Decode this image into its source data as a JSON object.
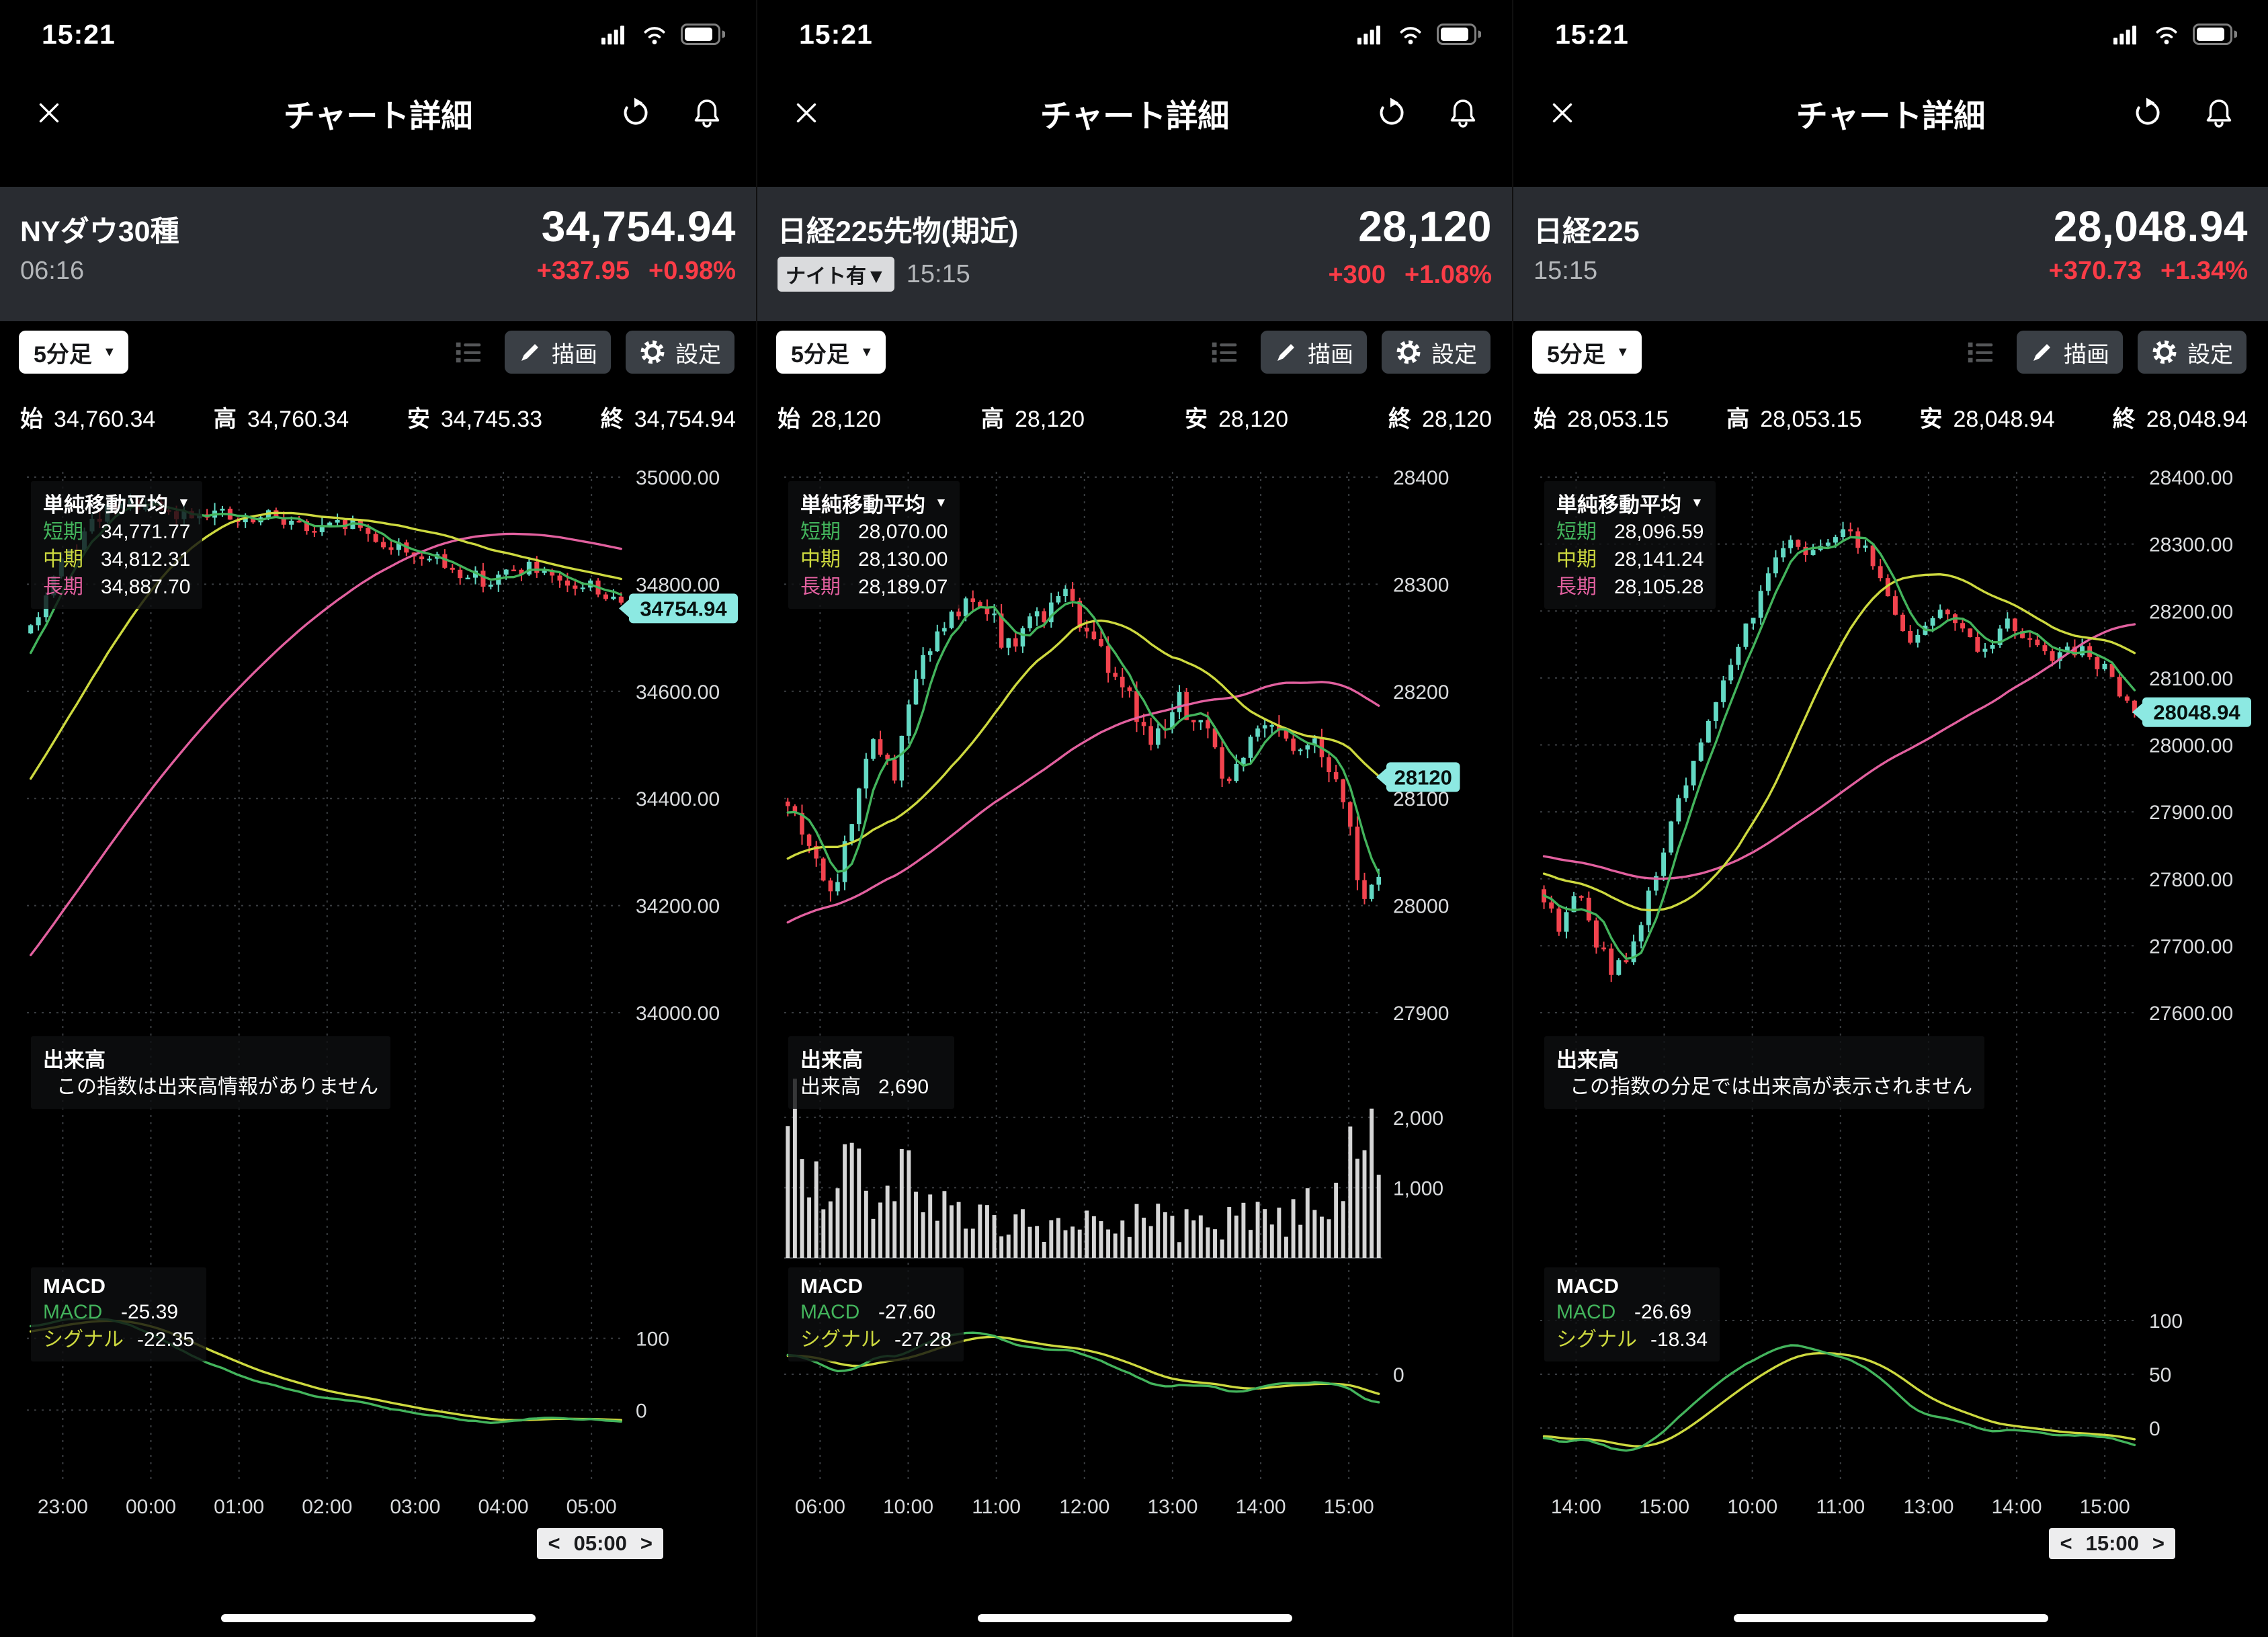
{
  "colors": {
    "up": "#63d9c4",
    "down": "#f2434e",
    "sma_short": "#43b45c",
    "sma_mid": "#cdd93f",
    "sma_long": "#e2609f",
    "macd_line": "#43b45c",
    "signal_line": "#cdd93f",
    "tag_bg": "#8ce9e2",
    "change_up": "#fb3c47",
    "volume_bar": "#d6d6d6"
  },
  "panels": [
    {
      "status": {
        "time": "15:21"
      },
      "nav": {
        "title": "チャート詳細"
      },
      "quote": {
        "name": "NYダウ30種",
        "price": "34,754.94",
        "badge": null,
        "time": "06:16",
        "change": "+337.95",
        "change_pct": "+0.98%"
      },
      "toolbar": {
        "timeframe": "5分足",
        "draw_label": "描画",
        "settings_label": "設定"
      },
      "ohlc": {
        "open_label": "始",
        "open": "34,760.34",
        "high_label": "高",
        "high": "34,760.34",
        "low_label": "安",
        "low": "34,745.33",
        "close_label": "終",
        "close": "34,754.94"
      },
      "sma_legend": {
        "title": "単純移動平均",
        "short_label": "短期",
        "short": "34,771.77",
        "mid_label": "中期",
        "mid": "34,812.31",
        "long_label": "長期",
        "long": "34,887.70"
      },
      "volume_legend": {
        "title": "出来高",
        "row_label": null,
        "row_value": null,
        "message": "この指数は出来高情報がありません"
      },
      "macd_legend": {
        "title": "MACD",
        "macd_label": "MACD",
        "macd": "-25.39",
        "signal_label": "シグナル",
        "signal": "-22.35"
      },
      "stepper": {
        "prev": "<",
        "label": "05:00",
        "next": ">"
      },
      "chart_data": {
        "type": "candlestick+sma+macd",
        "seed": 9,
        "candle_count": 78,
        "noise": 16,
        "y_min": 34000,
        "y_max": 35000,
        "y_ticks": [
          {
            "v": 35000,
            "label": "35000.00"
          },
          {
            "v": 34800,
            "label": "34800.00"
          },
          {
            "v": 34600,
            "label": "34600.00"
          },
          {
            "v": 34400,
            "label": "34400.00"
          },
          {
            "v": 34200,
            "label": "34200.00"
          },
          {
            "v": 34000,
            "label": "34000.00"
          }
        ],
        "x_ticks": [
          "23:00",
          "00:00",
          "01:00",
          "02:00",
          "03:00",
          "04:00",
          "05:00"
        ],
        "pre_path": [
          [
            -0.8,
            33560
          ],
          [
            -0.55,
            33850
          ],
          [
            -0.3,
            34200
          ],
          [
            -0.12,
            34480
          ]
        ],
        "price_path": [
          [
            0,
            34720
          ],
          [
            0.06,
            34850
          ],
          [
            0.12,
            34930
          ],
          [
            0.18,
            34950
          ],
          [
            0.24,
            34925
          ],
          [
            0.3,
            34940
          ],
          [
            0.36,
            34910
          ],
          [
            0.42,
            34930
          ],
          [
            0.48,
            34895
          ],
          [
            0.54,
            34915
          ],
          [
            0.6,
            34875
          ],
          [
            0.66,
            34855
          ],
          [
            0.72,
            34825
          ],
          [
            0.78,
            34805
          ],
          [
            0.84,
            34835
          ],
          [
            0.9,
            34790
          ],
          [
            0.95,
            34800
          ],
          [
            1,
            34756
          ]
        ],
        "tag": {
          "v": 34754.94,
          "label": "34754.94"
        },
        "volume": null,
        "macd": {
          "domain": [
            -100,
            200
          ],
          "scale": 0.8,
          "ticks": [
            {
              "v": 100,
              "label": "100"
            },
            {
              "v": 0,
              "label": "0"
            }
          ]
        }
      }
    },
    {
      "status": {
        "time": "15:21"
      },
      "nav": {
        "title": "チャート詳細"
      },
      "quote": {
        "name": "日経225先物(期近)",
        "price": "28,120",
        "badge": "ナイト有▼",
        "time": "15:15",
        "change": "+300",
        "change_pct": "+1.08%"
      },
      "toolbar": {
        "timeframe": "5分足",
        "draw_label": "描画",
        "settings_label": "設定"
      },
      "ohlc": {
        "open_label": "始",
        "open": "28,120",
        "high_label": "高",
        "high": "28,120",
        "low_label": "安",
        "low": "28,120",
        "close_label": "終",
        "close": "28,120"
      },
      "sma_legend": {
        "title": "単純移動平均",
        "short_label": "短期",
        "short": "28,070.00",
        "mid_label": "中期",
        "mid": "28,130.00",
        "long_label": "長期",
        "long": "28,189.07"
      },
      "volume_legend": {
        "title": "出来高",
        "row_label": "出来高",
        "row_value": "2,690",
        "message": null
      },
      "macd_legend": {
        "title": "MACD",
        "macd_label": "MACD",
        "macd": "-27.60",
        "signal_label": "シグナル",
        "signal": "-27.28"
      },
      "stepper": null,
      "chart_data": {
        "type": "candlestick+sma+volume+macd",
        "seed": 17,
        "candle_count": 84,
        "noise": 11,
        "y_min": 27900,
        "y_max": 28400,
        "y_ticks": [
          {
            "v": 28400,
            "label": "28400"
          },
          {
            "v": 28300,
            "label": "28300"
          },
          {
            "v": 28200,
            "label": "28200"
          },
          {
            "v": 28100,
            "label": "28100"
          },
          {
            "v": 28000,
            "label": "28000"
          },
          {
            "v": 27900,
            "label": "27900"
          }
        ],
        "x_ticks": [
          "06:00",
          "10:00",
          "11:00",
          "12:00",
          "13:00",
          "14:00",
          "15:00"
        ],
        "pre_path": [
          [
            -0.8,
            27870
          ],
          [
            -0.5,
            27940
          ],
          [
            -0.25,
            28010
          ],
          [
            -0.1,
            28060
          ]
        ],
        "price_path": [
          [
            0,
            28100
          ],
          [
            0.04,
            28060
          ],
          [
            0.07,
            28000
          ],
          [
            0.1,
            28060
          ],
          [
            0.14,
            28160
          ],
          [
            0.18,
            28120
          ],
          [
            0.22,
            28220
          ],
          [
            0.27,
            28260
          ],
          [
            0.32,
            28295
          ],
          [
            0.37,
            28240
          ],
          [
            0.42,
            28265
          ],
          [
            0.47,
            28290
          ],
          [
            0.52,
            28240
          ],
          [
            0.57,
            28200
          ],
          [
            0.62,
            28150
          ],
          [
            0.66,
            28190
          ],
          [
            0.7,
            28170
          ],
          [
            0.74,
            28120
          ],
          [
            0.78,
            28150
          ],
          [
            0.82,
            28170
          ],
          [
            0.86,
            28140
          ],
          [
            0.9,
            28150
          ],
          [
            0.94,
            28100
          ],
          [
            0.97,
            28010
          ],
          [
            1,
            28025
          ]
        ],
        "tag": {
          "v": 28120,
          "label": "28120"
        },
        "volume": {
          "max": 2600,
          "ticks": [
            {
              "v": 2000,
              "label": "2,000"
            },
            {
              "v": 1000,
              "label": "1,000"
            }
          ],
          "path": [
            [
              0,
              2300
            ],
            [
              0.02,
              1900
            ],
            [
              0.05,
              1300
            ],
            [
              0.08,
              1000
            ],
            [
              0.12,
              1350
            ],
            [
              0.16,
              800
            ],
            [
              0.2,
              1100
            ],
            [
              0.25,
              600
            ],
            [
              0.3,
              700
            ],
            [
              0.35,
              450
            ],
            [
              0.4,
              520
            ],
            [
              0.45,
              400
            ],
            [
              0.5,
              480
            ],
            [
              0.55,
              420
            ],
            [
              0.6,
              550
            ],
            [
              0.65,
              480
            ],
            [
              0.7,
              420
            ],
            [
              0.75,
              500
            ],
            [
              0.8,
              560
            ],
            [
              0.85,
              520
            ],
            [
              0.9,
              800
            ],
            [
              0.94,
              1100
            ],
            [
              0.97,
              1700
            ],
            [
              1,
              2450
            ]
          ]
        },
        "macd": {
          "domain": [
            -82,
            82
          ],
          "scale": 0.55,
          "ticks": [
            {
              "v": 0,
              "label": "0"
            }
          ]
        }
      }
    },
    {
      "status": {
        "time": "15:21"
      },
      "nav": {
        "title": "チャート詳細"
      },
      "quote": {
        "name": "日経225",
        "price": "28,048.94",
        "badge": null,
        "time": "15:15",
        "change": "+370.73",
        "change_pct": "+1.34%"
      },
      "toolbar": {
        "timeframe": "5分足",
        "draw_label": "描画",
        "settings_label": "設定"
      },
      "ohlc": {
        "open_label": "始",
        "open": "28,053.15",
        "high_label": "高",
        "high": "28,053.15",
        "low_label": "安",
        "low": "28,048.94",
        "close_label": "終",
        "close": "28,048.94"
      },
      "sma_legend": {
        "title": "単純移動平均",
        "short_label": "短期",
        "short": "28,096.59",
        "mid_label": "中期",
        "mid": "28,141.24",
        "long_label": "長期",
        "long": "28,105.28"
      },
      "volume_legend": {
        "title": "出来高",
        "row_label": null,
        "row_value": null,
        "message": "この指数の分足では出来高が表示されません"
      },
      "macd_legend": {
        "title": "MACD",
        "macd_label": "MACD",
        "macd": "-26.69",
        "signal_label": "シグナル",
        "signal": "-18.34"
      },
      "stepper": {
        "prev": "<",
        "label": "15:00",
        "next": ">"
      },
      "chart_data": {
        "type": "candlestick+sma+macd",
        "seed": 29,
        "candle_count": 80,
        "noise": 13,
        "y_min": 27600,
        "y_max": 28400,
        "y_ticks": [
          {
            "v": 28400,
            "label": "28400.00"
          },
          {
            "v": 28300,
            "label": "28300.00"
          },
          {
            "v": 28200,
            "label": "28200.00"
          },
          {
            "v": 28100,
            "label": "28100.00"
          },
          {
            "v": 28000,
            "label": "28000.00"
          },
          {
            "v": 27900,
            "label": "27900.00"
          },
          {
            "v": 27800,
            "label": "27800.00"
          },
          {
            "v": 27700,
            "label": "27700.00"
          },
          {
            "v": 27600,
            "label": "27600.00"
          }
        ],
        "x_ticks": [
          "14:00",
          "15:00",
          "10:00",
          "11:00",
          "13:00",
          "14:00",
          "15:00"
        ],
        "pre_path": [
          [
            -0.8,
            27880
          ],
          [
            -0.5,
            27850
          ],
          [
            -0.25,
            27830
          ],
          [
            -0.1,
            27800
          ]
        ],
        "price_path": [
          [
            0,
            27770
          ],
          [
            0.03,
            27720
          ],
          [
            0.06,
            27785
          ],
          [
            0.09,
            27700
          ],
          [
            0.12,
            27655
          ],
          [
            0.15,
            27705
          ],
          [
            0.18,
            27780
          ],
          [
            0.22,
            27890
          ],
          [
            0.26,
            28000
          ],
          [
            0.3,
            28090
          ],
          [
            0.34,
            28170
          ],
          [
            0.38,
            28260
          ],
          [
            0.42,
            28310
          ],
          [
            0.46,
            28275
          ],
          [
            0.5,
            28330
          ],
          [
            0.54,
            28300
          ],
          [
            0.58,
            28230
          ],
          [
            0.62,
            28160
          ],
          [
            0.66,
            28200
          ],
          [
            0.7,
            28170
          ],
          [
            0.74,
            28130
          ],
          [
            0.78,
            28180
          ],
          [
            0.82,
            28160
          ],
          [
            0.86,
            28120
          ],
          [
            0.9,
            28145
          ],
          [
            0.94,
            28120
          ],
          [
            0.97,
            28090
          ],
          [
            1,
            28052
          ]
        ],
        "tag": {
          "v": 28048.94,
          "label": "28048.94"
        },
        "volume": null,
        "macd": {
          "domain": [
            -50,
            150
          ],
          "scale": 0.6,
          "ticks": [
            {
              "v": 100,
              "label": "100"
            },
            {
              "v": 50,
              "label": "50"
            },
            {
              "v": 0,
              "label": "0"
            }
          ]
        }
      }
    }
  ]
}
